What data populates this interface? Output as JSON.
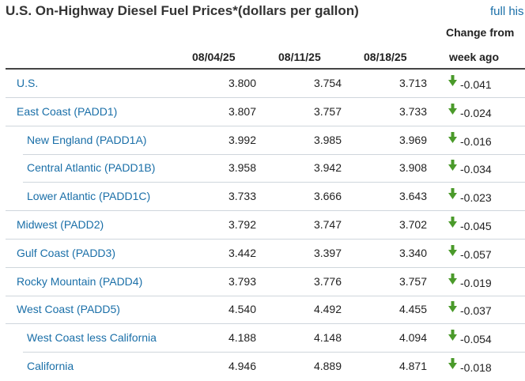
{
  "title": "U.S. On-Highway Diesel Fuel Prices*(dollars per gallon)",
  "full_history_link": "full his",
  "columns": {
    "date1": "08/04/25",
    "date2": "08/11/25",
    "date3": "08/18/25",
    "change_line1": "Change from",
    "change_line2": "week ago"
  },
  "colors": {
    "link": "#1a6fa8",
    "down_arrow": "#4a9a2a"
  },
  "rows": [
    {
      "region": "U.S.",
      "indent": false,
      "v1": "3.800",
      "v2": "3.754",
      "v3": "3.713",
      "change": "-0.041",
      "icon": "down-arrow-icon"
    },
    {
      "region": "East Coast (PADD1)",
      "indent": false,
      "v1": "3.807",
      "v2": "3.757",
      "v3": "3.733",
      "change": "-0.024",
      "icon": "down-arrow-icon"
    },
    {
      "region": "New England (PADD1A)",
      "indent": true,
      "v1": "3.992",
      "v2": "3.985",
      "v3": "3.969",
      "change": "-0.016",
      "icon": "down-arrow-icon"
    },
    {
      "region": "Central Atlantic (PADD1B)",
      "indent": true,
      "v1": "3.958",
      "v2": "3.942",
      "v3": "3.908",
      "change": "-0.034",
      "icon": "down-arrow-icon"
    },
    {
      "region": "Lower Atlantic (PADD1C)",
      "indent": true,
      "v1": "3.733",
      "v2": "3.666",
      "v3": "3.643",
      "change": "-0.023",
      "icon": "down-arrow-icon"
    },
    {
      "region": "Midwest (PADD2)",
      "indent": false,
      "v1": "3.792",
      "v2": "3.747",
      "v3": "3.702",
      "change": "-0.045",
      "icon": "down-arrow-icon"
    },
    {
      "region": "Gulf Coast (PADD3)",
      "indent": false,
      "v1": "3.442",
      "v2": "3.397",
      "v3": "3.340",
      "change": "-0.057",
      "icon": "down-arrow-icon"
    },
    {
      "region": "Rocky Mountain (PADD4)",
      "indent": false,
      "v1": "3.793",
      "v2": "3.776",
      "v3": "3.757",
      "change": "-0.019",
      "icon": "down-arrow-icon"
    },
    {
      "region": "West Coast (PADD5)",
      "indent": false,
      "v1": "4.540",
      "v2": "4.492",
      "v3": "4.455",
      "change": "-0.037",
      "icon": "down-arrow-icon"
    },
    {
      "region": "West Coast less California",
      "indent": true,
      "v1": "4.188",
      "v2": "4.148",
      "v3": "4.094",
      "change": "-0.054",
      "icon": "down-arrow-icon"
    },
    {
      "region": "California",
      "indent": true,
      "v1": "4.946",
      "v2": "4.889",
      "v3": "4.871",
      "change": "-0.018",
      "icon": "down-arrow-icon"
    }
  ]
}
